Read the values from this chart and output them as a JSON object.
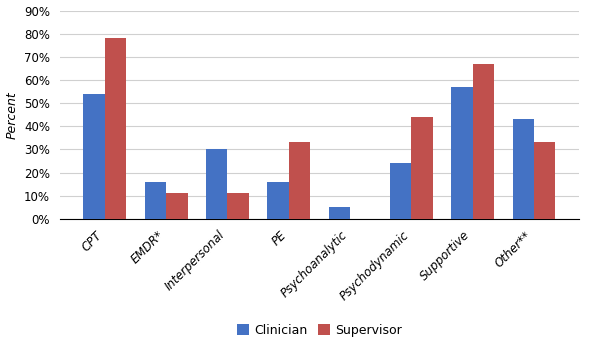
{
  "categories": [
    "CPT",
    "EMDR*",
    "Interpersonal",
    "PE",
    "Psychoanalytic",
    "Psychodynamic",
    "Supportive",
    "Other**"
  ],
  "clinician": [
    0.54,
    0.16,
    0.3,
    0.16,
    0.05,
    0.24,
    0.57,
    0.43
  ],
  "supervisor": [
    0.78,
    0.11,
    0.11,
    0.33,
    0.0,
    0.44,
    0.67,
    0.33
  ],
  "clinician_color": "#4472C4",
  "supervisor_color": "#C0504D",
  "ylabel": "Percent",
  "ylim": [
    0,
    0.9
  ],
  "yticks": [
    0.0,
    0.1,
    0.2,
    0.3,
    0.4,
    0.5,
    0.6,
    0.7,
    0.8,
    0.9
  ],
  "legend_labels": [
    "Clinician",
    "Supervisor"
  ],
  "background_color": "#FFFFFF",
  "grid_color": "#D0D0D0",
  "bar_width": 0.35
}
